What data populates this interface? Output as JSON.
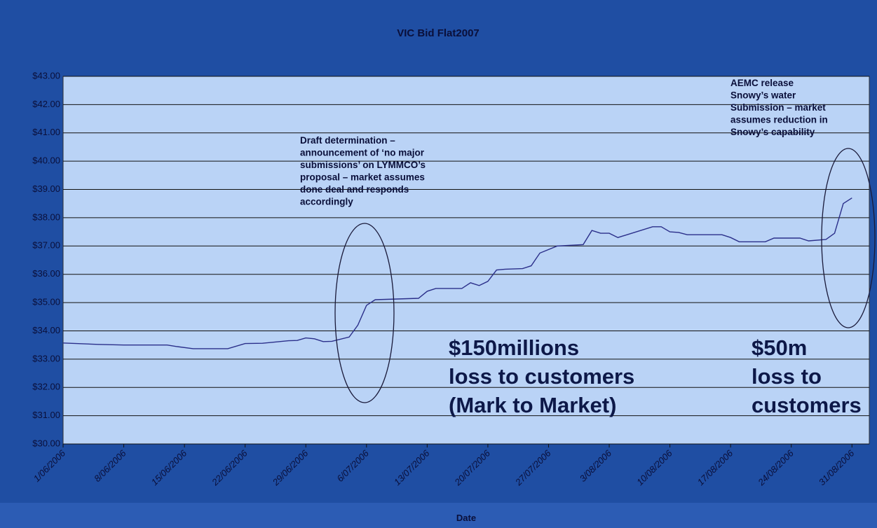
{
  "chart_data": {
    "type": "line",
    "title": "VIC Bid Flat2007",
    "x_label": "Date",
    "x": [
      "1/06/2006",
      "5/06/2006",
      "8/06/2006",
      "13/06/2006",
      "14/06/2006",
      "16/06/2006",
      "20/06/2006",
      "22/06/2006",
      "24/06/2006",
      "27/06/2006",
      "28/06/2006",
      "29/06/2006",
      "30/06/2006",
      "1/07/2006",
      "2/07/2006",
      "4/07/2006",
      "5/07/2006",
      "6/07/2006",
      "7/07/2006",
      "12/07/2006",
      "13/07/2006",
      "14/07/2006",
      "17/07/2006",
      "18/07/2006",
      "19/07/2006",
      "20/07/2006",
      "21/07/2006",
      "22/07/2006",
      "24/07/2006",
      "25/07/2006",
      "26/07/2006",
      "28/07/2006",
      "31/07/2006",
      "1/08/2006",
      "2/08/2006",
      "3/08/2006",
      "4/08/2006",
      "8/08/2006",
      "9/08/2006",
      "10/08/2006",
      "11/08/2006",
      "12/08/2006",
      "16/08/2006",
      "17/08/2006",
      "18/08/2006",
      "21/08/2006",
      "22/08/2006",
      "25/08/2006",
      "26/08/2006",
      "28/08/2006",
      "29/08/2006",
      "30/08/2006",
      "31/08/2006"
    ],
    "series": [
      {
        "name": "VIC Bid Flat2007",
        "color": "#2b2f8a",
        "values": [
          33.57,
          33.52,
          33.5,
          33.5,
          33.45,
          33.37,
          33.37,
          33.55,
          33.56,
          33.65,
          33.66,
          33.75,
          33.72,
          33.62,
          33.63,
          33.78,
          34.2,
          34.9,
          35.1,
          35.15,
          35.4,
          35.5,
          35.5,
          35.7,
          35.6,
          35.75,
          36.15,
          36.18,
          36.2,
          36.3,
          36.75,
          37.0,
          37.05,
          37.55,
          37.45,
          37.45,
          37.3,
          37.68,
          37.68,
          37.5,
          37.48,
          37.4,
          37.4,
          37.3,
          37.15,
          37.15,
          37.28,
          37.28,
          37.18,
          37.23,
          37.45,
          38.5,
          38.7
        ]
      }
    ],
    "xlim": [
      "1/06/2006",
      "2/09/2006"
    ],
    "xticks": [
      "1/06/2006",
      "8/06/2006",
      "15/06/2006",
      "22/06/2006",
      "29/06/2006",
      "6/07/2006",
      "13/07/2006",
      "20/07/2006",
      "27/07/2006",
      "3/08/2006",
      "10/08/2006",
      "17/08/2006",
      "24/08/2006",
      "31/08/2006"
    ],
    "ylim": [
      30,
      43
    ],
    "yticks": [
      {
        "value": 30,
        "label": "$30.00"
      },
      {
        "value": 31,
        "label": "$31.00"
      },
      {
        "value": 32,
        "label": "$32.00"
      },
      {
        "value": 33,
        "label": "$33.00"
      },
      {
        "value": 34,
        "label": "$34.00"
      },
      {
        "value": 35,
        "label": "$35.00"
      },
      {
        "value": 36,
        "label": "$36.00"
      },
      {
        "value": 37,
        "label": "$37.00"
      },
      {
        "value": 38,
        "label": "$38.00"
      },
      {
        "value": 39,
        "label": "$39.00"
      },
      {
        "value": 40,
        "label": "$40.00"
      },
      {
        "value": 41,
        "label": "$41.00"
      },
      {
        "value": 42,
        "label": "$42.00"
      },
      {
        "value": 43,
        "label": "$43.00"
      }
    ],
    "grid": true,
    "annotations": [
      {
        "lines": [
          "Draft determination –",
          "announcement of ‘no major",
          "submissions’ on LYMMCO’s",
          "proposal – market assumes",
          "done deal and responds",
          "accordingly"
        ]
      },
      {
        "lines": [
          "AEMC release",
          "Snowy’s water",
          "Submission – market",
          "assumes reduction in",
          "Snowy’s capability"
        ]
      },
      {
        "lines": [
          "$150millions",
          "loss to customers",
          "(Mark to Market)"
        ]
      },
      {
        "lines": [
          "$50m",
          "loss to",
          "customers"
        ]
      }
    ]
  }
}
